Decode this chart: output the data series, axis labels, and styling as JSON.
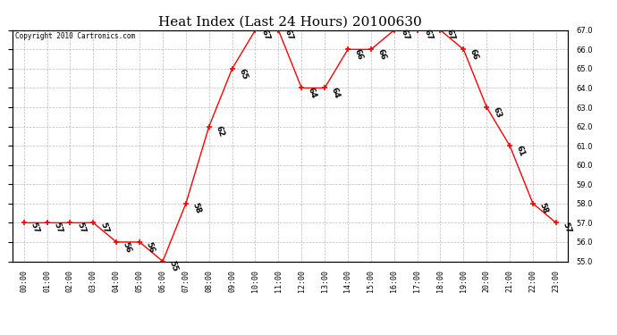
{
  "title": "Heat Index (Last 24 Hours) 20100630",
  "copyright": "Copyright 2010 Cartronics.com",
  "hours": [
    "00:00",
    "01:00",
    "02:00",
    "03:00",
    "04:00",
    "05:00",
    "06:00",
    "07:00",
    "08:00",
    "09:00",
    "10:00",
    "11:00",
    "12:00",
    "13:00",
    "14:00",
    "15:00",
    "16:00",
    "17:00",
    "18:00",
    "19:00",
    "20:00",
    "21:00",
    "22:00",
    "23:00"
  ],
  "values": [
    57,
    57,
    57,
    57,
    56,
    56,
    55,
    58,
    62,
    65,
    67,
    67,
    64,
    64,
    66,
    66,
    67,
    67,
    67,
    66,
    63,
    61,
    58,
    57
  ],
  "ylim_min": 55.0,
  "ylim_max": 67.0,
  "ytick_step": 1.0,
  "line_color": "#ff0000",
  "marker_color": "#ff0000",
  "bg_color": "#ffffff",
  "grid_color": "#aaaaaa",
  "label_color": "#000000",
  "title_fontsize": 11,
  "tick_fontsize": 6,
  "annotation_fontsize": 6.5,
  "copyright_fontsize": 5.5
}
